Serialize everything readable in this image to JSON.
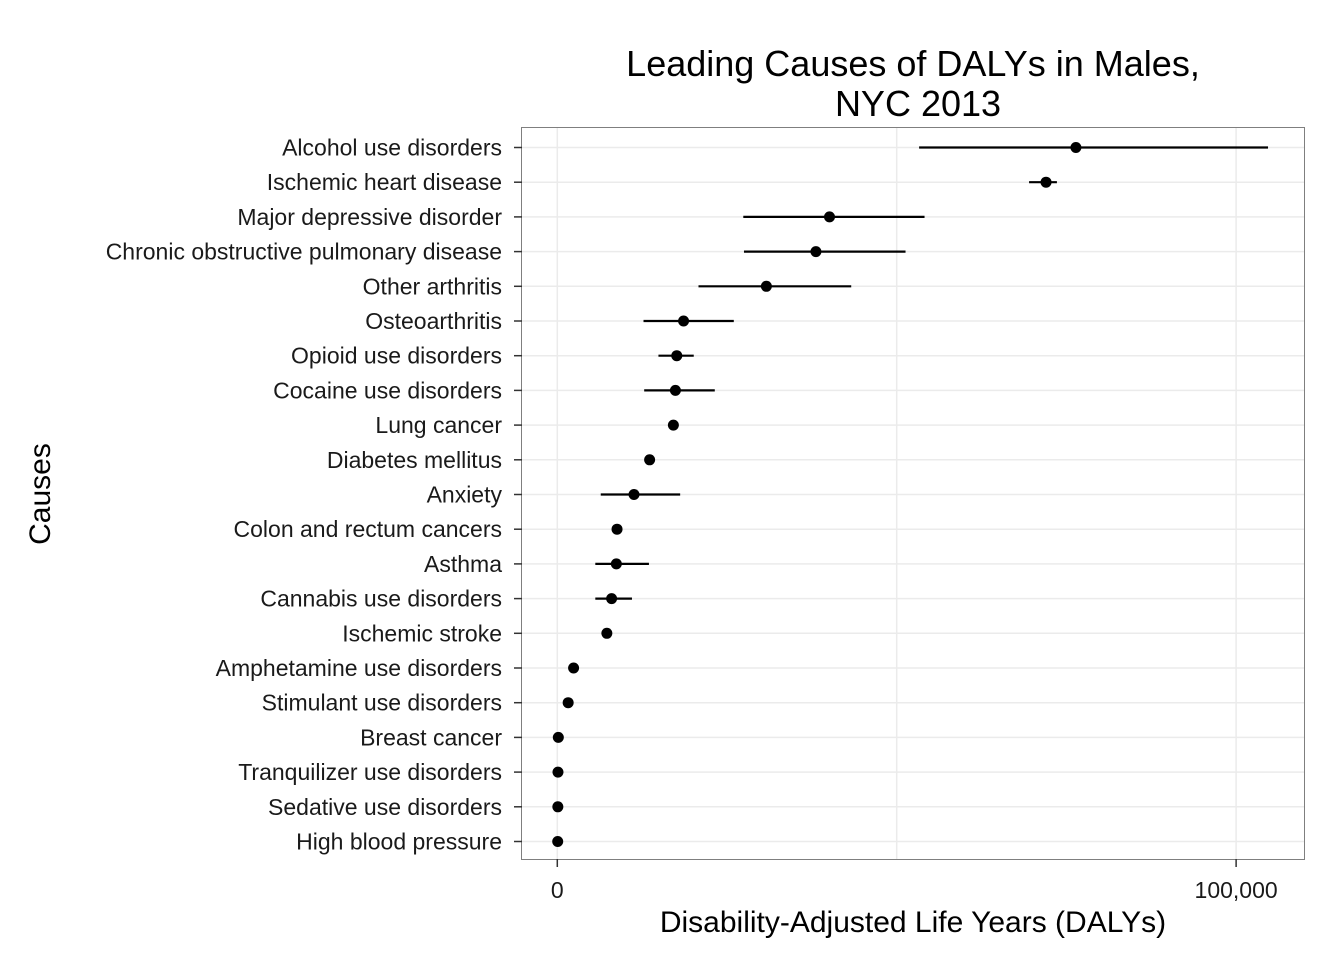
{
  "chart_data": {
    "type": "scatter",
    "title": [
      "Leading Causes of DALYs in Males,",
      "NYC 2013"
    ],
    "xlabel": "Disability-Adjusted Life Years (DALYs)",
    "ylabel": "Causes",
    "xlim": [
      -5200,
      110000
    ],
    "xticks": [
      0,
      100000
    ],
    "xtick_labels": [
      "0",
      "100,000"
    ],
    "grid": true,
    "categories": [
      "Alcohol use disorders",
      "Ischemic heart disease",
      "Major depressive disorder",
      "Chronic obstructive pulmonary disease",
      "Other arthritis",
      "Osteoarthritis",
      "Opioid use disorders",
      "Cocaine use disorders",
      "Lung cancer",
      "Diabetes mellitus",
      "Anxiety",
      "Colon and rectum cancers",
      "Asthma",
      "Cannabis use disorders",
      "Ischemic stroke",
      "Amphetamine use disorders",
      "Stimulant use disorders",
      "Breast cancer",
      "Tranquilizer use disorders",
      "Sedative use disorders",
      "High blood pressure"
    ],
    "values": [
      76400,
      72000,
      40100,
      38100,
      30800,
      18600,
      17600,
      17400,
      17100,
      13600,
      11300,
      8800,
      8700,
      8000,
      7300,
      2400,
      1600,
      150,
      100,
      80,
      60
    ],
    "lower": [
      53300,
      69500,
      27400,
      27500,
      20800,
      12700,
      14900,
      12800,
      17000,
      13400,
      6400,
      8700,
      5600,
      5600,
      7200,
      2000,
      1500,
      100,
      50,
      40,
      30
    ],
    "upper": [
      104700,
      73600,
      54100,
      51300,
      43300,
      26000,
      20100,
      23200,
      17300,
      13900,
      18100,
      8900,
      13500,
      11000,
      7400,
      3000,
      1700,
      200,
      150,
      120,
      90
    ]
  }
}
